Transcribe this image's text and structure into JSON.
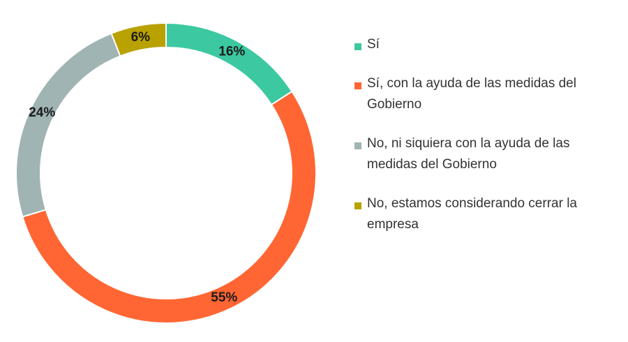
{
  "chart_data": {
    "type": "donut",
    "categories": [
      "Sí",
      "Sí, con la ayuda de las medidas del Gobierno",
      "No, ni siquiera con la ayuda de las medidas del Gobierno",
      "No, estamos considerando cerrar la empresa"
    ],
    "values": [
      16,
      55,
      24,
      6
    ],
    "value_labels": [
      "16%",
      "55%",
      "24%",
      "6%"
    ],
    "colors": [
      "#3cc8a0",
      "#ff6633",
      "#a0b4b4",
      "#b9a100"
    ]
  }
}
